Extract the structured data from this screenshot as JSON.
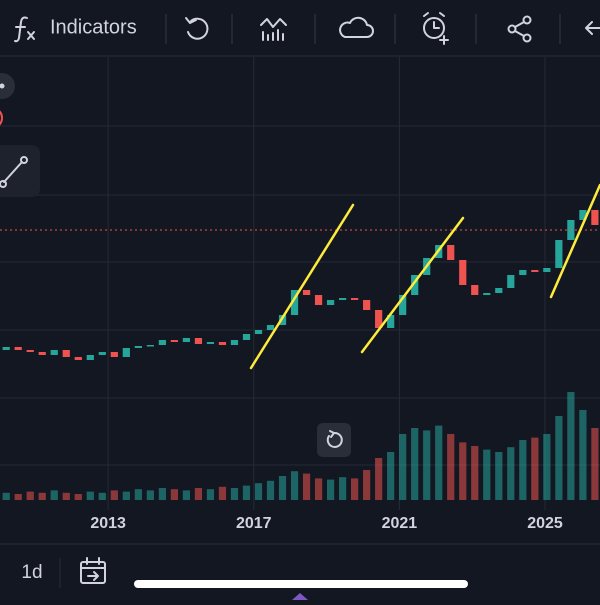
{
  "toolbar": {
    "indicators": "Indicators"
  },
  "chart_data": {
    "type": "candlestick",
    "x": [
      2010.2,
      2010.53,
      2010.86,
      2011.19,
      2011.52,
      2011.85,
      2012.18,
      2012.51,
      2012.84,
      2013.17,
      2013.5,
      2013.83,
      2014.16,
      2014.49,
      2014.82,
      2015.15,
      2015.48,
      2015.81,
      2016.14,
      2016.47,
      2016.8,
      2017.13,
      2017.46,
      2017.79,
      2018.12,
      2018.45,
      2018.78,
      2019.11,
      2019.44,
      2019.77,
      2020.1,
      2020.43,
      2020.76,
      2021.09,
      2021.42,
      2021.75,
      2022.08,
      2022.41,
      2022.74,
      2023.07,
      2023.4,
      2023.73,
      2024.06,
      2024.39,
      2024.72,
      2025.05,
      2025.38,
      2025.71,
      2026.04,
      2026.37
    ],
    "open": [
      150,
      153,
      150,
      148,
      145,
      150,
      143,
      140,
      145,
      148,
      143,
      152,
      154,
      155,
      160,
      158,
      162,
      156,
      158,
      155,
      160,
      166,
      170,
      175,
      185,
      210,
      205,
      195,
      200,
      202,
      200,
      190,
      172,
      185,
      205,
      225,
      242,
      255,
      240,
      215,
      205,
      207,
      212,
      225,
      230,
      228,
      232,
      260,
      280,
      290
    ],
    "close": [
      153,
      150,
      148,
      145,
      150,
      143,
      140,
      145,
      148,
      143,
      152,
      154,
      155,
      160,
      158,
      162,
      156,
      158,
      155,
      160,
      166,
      170,
      175,
      185,
      210,
      205,
      195,
      200,
      202,
      200,
      190,
      172,
      185,
      205,
      225,
      242,
      255,
      240,
      215,
      205,
      207,
      212,
      225,
      230,
      228,
      232,
      260,
      280,
      290,
      275
    ],
    "volume": [
      6,
      5,
      7,
      6,
      8,
      6,
      5,
      7,
      6,
      8,
      7,
      9,
      8,
      10,
      9,
      8,
      10,
      9,
      11,
      10,
      12,
      14,
      16,
      20,
      24,
      22,
      18,
      17,
      19,
      18,
      25,
      35,
      40,
      55,
      60,
      58,
      62,
      55,
      48,
      45,
      42,
      40,
      44,
      50,
      52,
      55,
      70,
      90,
      75,
      60
    ],
    "xlim": [
      2010.03,
      2026.51
    ],
    "xticks": [
      2013,
      2017,
      2021,
      2025
    ],
    "ylim": [
      0,
      440
    ],
    "y2lim": [
      0,
      100
    ],
    "up_color": "#26a69a",
    "down_color": "#ef5350",
    "grid": true
  },
  "bottom_bar": {
    "interval": "1d"
  }
}
